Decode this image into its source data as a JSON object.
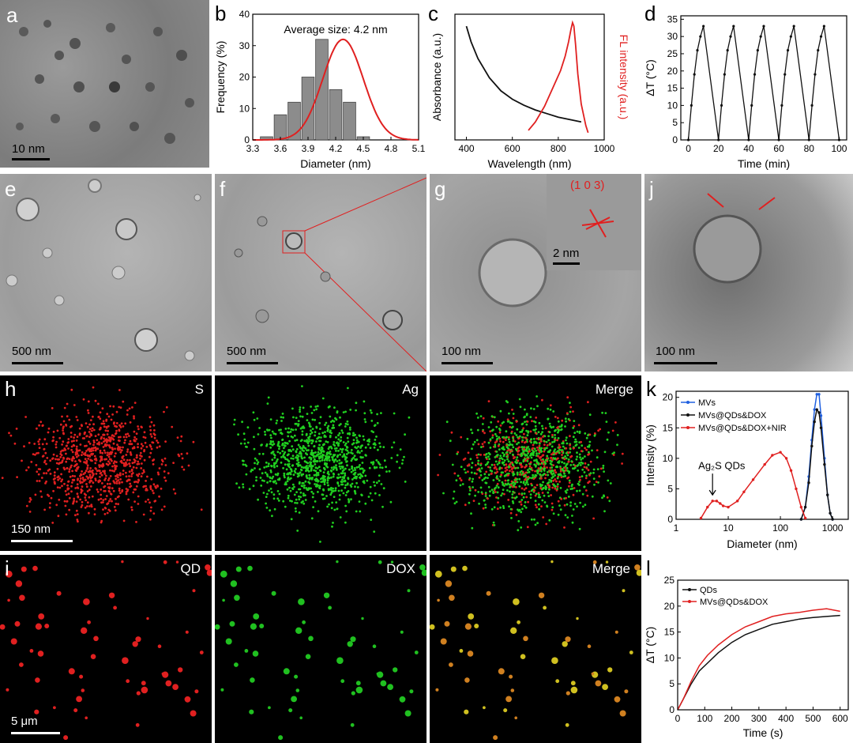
{
  "labels": {
    "a": "a",
    "b": "b",
    "c": "c",
    "d": "d",
    "e": "e",
    "f": "f",
    "g": "g",
    "j": "j",
    "h": "h",
    "k": "k",
    "i": "i",
    "l": "l"
  },
  "scale_bars": {
    "a": "10 nm",
    "e": "500 nm",
    "f": "500 nm",
    "g": "100 nm",
    "g_inset": "2 nm",
    "j": "100 nm",
    "h": "150 nm",
    "i": "5 μm"
  },
  "inset_g_lattice": "(1 0 3)",
  "map_labels": {
    "h1": "S",
    "h2": "Ag",
    "h3": "Merge",
    "i1": "QD",
    "i2": "DOX",
    "i3": "Merge"
  },
  "colors": {
    "red": "#e02020",
    "green": "#20d020",
    "blue": "#2060e0",
    "black": "#111111",
    "gray": "#8c8c8c"
  },
  "chart_data": [
    {
      "id": "b",
      "type": "bar",
      "annotation": "Average size: 4.2 nm",
      "xlabel": "Diameter (nm)",
      "ylabel": "Frequency (%)",
      "xlim": [
        3.3,
        5.1
      ],
      "ylim": [
        0,
        40
      ],
      "xticks": [
        "3.3",
        "3.6",
        "3.9",
        "4.2",
        "4.5",
        "4.8",
        "5.1"
      ],
      "yticks": [
        "0",
        "10",
        "20",
        "30",
        "40"
      ],
      "categories": [
        3.45,
        3.6,
        3.75,
        3.9,
        4.05,
        4.2,
        4.35,
        4.5,
        4.65,
        4.8,
        4.95
      ],
      "values": [
        1,
        8,
        12,
        20,
        32,
        16,
        12,
        1,
        0,
        0,
        0
      ],
      "fit": {
        "type": "gaussian",
        "mean": 4.28,
        "sigma": 0.22,
        "peak": 32
      }
    },
    {
      "id": "c",
      "type": "line",
      "xlabel": "Wavelength (nm)",
      "ylabel": "Absorbance (a.u.)",
      "ylabel2": "FL intensity (a.u.)",
      "xlim": [
        350,
        1000
      ],
      "xticks": [
        "400",
        "600",
        "800",
        "1000"
      ],
      "series": [
        {
          "color": "#111111",
          "x": [
            400,
            420,
            450,
            500,
            550,
            600,
            650,
            700,
            750,
            800,
            850,
            900
          ],
          "y": [
            0.95,
            0.82,
            0.68,
            0.52,
            0.41,
            0.34,
            0.29,
            0.25,
            0.22,
            0.19,
            0.17,
            0.15
          ]
        },
        {
          "color": "#e02020",
          "x": [
            670,
            700,
            740,
            780,
            810,
            830,
            845,
            855,
            862,
            868,
            875,
            885,
            900,
            920,
            930
          ],
          "y": [
            0.08,
            0.15,
            0.28,
            0.45,
            0.58,
            0.7,
            0.82,
            0.92,
            0.98,
            0.95,
            0.8,
            0.55,
            0.3,
            0.12,
            0.06
          ]
        }
      ]
    },
    {
      "id": "d",
      "type": "line",
      "xlabel": "Time (min)",
      "ylabel": "ΔT (°C)",
      "xlim": [
        -5,
        105
      ],
      "ylim": [
        0,
        36
      ],
      "xticks": [
        "0",
        "20",
        "40",
        "60",
        "80",
        "100"
      ],
      "yticks": [
        "0",
        "5",
        "10",
        "15",
        "20",
        "25",
        "30",
        "35"
      ],
      "series": [
        {
          "color": "#111111",
          "x": [
            0,
            2,
            4,
            6,
            8,
            10,
            20,
            22,
            24,
            26,
            28,
            30,
            40,
            42,
            44,
            46,
            48,
            50,
            60,
            62,
            64,
            66,
            68,
            70,
            80,
            82,
            84,
            86,
            88,
            90,
            100
          ],
          "y": [
            0,
            10,
            19,
            26,
            30,
            33,
            0,
            10,
            19,
            26,
            30,
            33,
            0,
            10,
            19,
            26,
            30,
            33,
            0,
            10,
            19,
            26,
            30,
            33,
            0,
            10,
            19,
            26,
            30,
            33,
            0
          ]
        }
      ]
    },
    {
      "id": "k",
      "type": "line",
      "xlabel": "Diameter (nm)",
      "ylabel": "Intensity (%)",
      "xscale": "log",
      "xlim": [
        1,
        2000
      ],
      "ylim": [
        0,
        21
      ],
      "xticks": [
        "1",
        "10",
        "100",
        "1000"
      ],
      "yticks": [
        "0",
        "5",
        "10",
        "15",
        "20"
      ],
      "annotation": "Ag₂S QDs",
      "series": [
        {
          "name": "MVs",
          "color": "#2060e0",
          "x": [
            250,
            300,
            350,
            400,
            450,
            500,
            550,
            600,
            700,
            800,
            900,
            1000
          ],
          "y": [
            0,
            2,
            7,
            13,
            18,
            20.5,
            20.5,
            17,
            10,
            4,
            1,
            0
          ]
        },
        {
          "name": "MVs@QDs&DOX",
          "color": "#111111",
          "x": [
            250,
            300,
            350,
            400,
            450,
            500,
            550,
            600,
            700,
            800,
            900,
            1000
          ],
          "y": [
            0,
            2,
            6,
            12,
            16,
            18,
            17.5,
            15,
            9,
            4,
            1,
            0
          ]
        },
        {
          "name": "MVs@QDs&DOX+NIR",
          "color": "#e02020",
          "x": [
            3,
            4,
            5,
            6,
            7,
            8,
            10,
            15,
            20,
            30,
            50,
            70,
            100,
            130,
            160,
            200,
            250,
            300
          ],
          "y": [
            0.2,
            2,
            3,
            3,
            2.6,
            2.2,
            2,
            3,
            4.5,
            6.5,
            9,
            10.5,
            11,
            10,
            8,
            5,
            2,
            0.2
          ]
        }
      ]
    },
    {
      "id": "l",
      "type": "line",
      "xlabel": "Time (s)",
      "ylabel": "ΔT (°C)",
      "xlim": [
        0,
        630
      ],
      "ylim": [
        0,
        25
      ],
      "xticks": [
        "0",
        "100",
        "200",
        "300",
        "400",
        "500",
        "600"
      ],
      "yticks": [
        "0",
        "5",
        "10",
        "15",
        "20",
        "25"
      ],
      "series": [
        {
          "name": "QDs",
          "color": "#111111",
          "x": [
            0,
            20,
            50,
            80,
            110,
            150,
            200,
            250,
            300,
            350,
            400,
            450,
            500,
            550,
            600
          ],
          "y": [
            0,
            2,
            5,
            7.5,
            9,
            11,
            13,
            14.5,
            15.5,
            16.5,
            17,
            17.5,
            17.8,
            18,
            18.2
          ]
        },
        {
          "name": "MVs@QDs&DOX",
          "color": "#e02020",
          "x": [
            0,
            20,
            50,
            80,
            110,
            150,
            200,
            250,
            300,
            350,
            400,
            450,
            500,
            550,
            600
          ],
          "y": [
            0,
            2,
            5.5,
            8.5,
            10.5,
            12.5,
            14.5,
            16,
            17,
            18,
            18.5,
            18.8,
            19.2,
            19.5,
            19
          ]
        }
      ]
    }
  ]
}
